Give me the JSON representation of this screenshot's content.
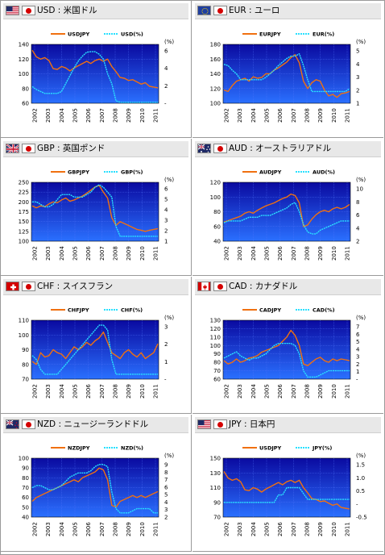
{
  "colors": {
    "orange": "#f07010",
    "cyan": "#29e0ff",
    "plot_top": "#0a0aa0",
    "plot_bottom": "#2a70ff"
  },
  "panels": [
    {
      "title": "USD : 米国ドル",
      "flag": "us-flag-icon",
      "chart_data": {
        "type": "line",
        "x_labels": [
          "2002",
          "2003",
          "2004",
          "2005",
          "2006",
          "2007",
          "2008",
          "2009",
          "2010",
          "2011"
        ],
        "left_axis": {
          "unit": "",
          "ticks": [
            "140",
            "120",
            "100",
            "80",
            "60"
          ],
          "range": [
            60,
            140
          ]
        },
        "right_axis": {
          "unit": "(%)",
          "ticks": [
            "6",
            "4",
            "2",
            "-"
          ],
          "range": [
            0,
            6
          ]
        },
        "series": [
          {
            "name": "USDJPY",
            "color": "orange",
            "axis": "left",
            "values": [
              132,
              123,
              120,
              122,
              118,
              107,
              106,
              110,
              108,
              104,
              108,
              111,
              114,
              117,
              114,
              118,
              120,
              117,
              120,
              110,
              103,
              95,
              94,
              91,
              92,
              89,
              86,
              88,
              83,
              82,
              81
            ]
          },
          {
            "name": "USD(%)",
            "color": "cyan",
            "axis": "right",
            "values": [
              1.7,
              1.4,
              1.2,
              1.0,
              1.0,
              1.0,
              1.0,
              1.2,
              2.0,
              2.8,
              3.6,
              4.3,
              4.8,
              5.2,
              5.25,
              5.25,
              5.0,
              4.5,
              3.0,
              2.0,
              0.25,
              0.1,
              0.1,
              0.1,
              0.1,
              0.1,
              0.1,
              0.1,
              0.1,
              0.1,
              0.1
            ]
          }
        ]
      }
    },
    {
      "title": "EUR : ユーロ",
      "flag": "eu-flag-icon",
      "chart_data": {
        "type": "line",
        "x_labels": [
          "2002",
          "2003",
          "2004",
          "2005",
          "2006",
          "2007",
          "2008",
          "2009",
          "2010",
          "2011"
        ],
        "left_axis": {
          "unit": "",
          "ticks": [
            "180",
            "160",
            "140",
            "120",
            "100"
          ],
          "range": [
            100,
            180
          ]
        },
        "right_axis": {
          "unit": "(%)",
          "ticks": [
            "5",
            "4",
            "3",
            "2",
            "1"
          ],
          "range": [
            0,
            5
          ]
        },
        "series": [
          {
            "name": "EURJPY",
            "color": "orange",
            "axis": "left",
            "values": [
              118,
              116,
              124,
              130,
              132,
              134,
              130,
              136,
              134,
              135,
              140,
              140,
              145,
              148,
              152,
              156,
              162,
              166,
              155,
              130,
              120,
              128,
              132,
              130,
              118,
              110,
              112,
              108,
              113,
              114,
              116
            ]
          },
          {
            "name": "EUR(%)",
            "color": "cyan",
            "axis": "right",
            "values": [
              3.3,
              3.2,
              2.8,
              2.5,
              2.0,
              2.0,
              2.0,
              2.0,
              2.0,
              2.0,
              2.2,
              2.5,
              2.8,
              3.2,
              3.5,
              3.8,
              4.0,
              4.0,
              4.2,
              3.2,
              2.0,
              1.0,
              1.0,
              1.0,
              1.0,
              1.0,
              1.0,
              1.0,
              1.0,
              1.0,
              1.25
            ]
          }
        ]
      }
    },
    {
      "title": "GBP : 英国ポンド",
      "flag": "uk-flag-icon",
      "chart_data": {
        "type": "line",
        "x_labels": [
          "2002",
          "2003",
          "2004",
          "2005",
          "2006",
          "2007",
          "2008",
          "2009",
          "2010",
          "2011"
        ],
        "left_axis": {
          "unit": "",
          "ticks": [
            "250",
            "225",
            "200",
            "175",
            "150",
            "125",
            "100"
          ],
          "range": [
            100,
            250
          ]
        },
        "right_axis": {
          "unit": "(%)",
          "ticks": [
            "6",
            "5",
            "4",
            "3",
            "2",
            "1"
          ],
          "range": [
            0,
            6
          ]
        },
        "series": [
          {
            "name": "GBPJPY",
            "color": "orange",
            "axis": "left",
            "values": [
              190,
              185,
              190,
              188,
              195,
              200,
              198,
              205,
              210,
              202,
              205,
              210,
              215,
              222,
              230,
              238,
              242,
              225,
              210,
              160,
              140,
              150,
              145,
              140,
              135,
              130,
              128,
              125,
              128,
              130,
              132
            ]
          },
          {
            "name": "GBP(%)",
            "color": "cyan",
            "axis": "right",
            "values": [
              4.0,
              4.0,
              3.75,
              3.5,
              3.5,
              3.75,
              4.25,
              4.75,
              4.75,
              4.75,
              4.5,
              4.5,
              4.5,
              4.75,
              5.0,
              5.5,
              5.75,
              5.5,
              5.0,
              4.5,
              1.5,
              0.5,
              0.5,
              0.5,
              0.5,
              0.5,
              0.5,
              0.5,
              0.5,
              0.5,
              0.5
            ]
          }
        ]
      }
    },
    {
      "title": "AUD : オーストラリアドル",
      "flag": "au-flag-icon",
      "chart_data": {
        "type": "line",
        "x_labels": [
          "2002",
          "2003",
          "2004",
          "2005",
          "2006",
          "2007",
          "2008",
          "2009",
          "2010",
          "2011"
        ],
        "left_axis": {
          "unit": "",
          "ticks": [
            "120",
            "100",
            "80",
            "60",
            "40"
          ],
          "range": [
            40,
            120
          ]
        },
        "right_axis": {
          "unit": "(%)",
          "ticks": [
            "10",
            "8",
            "6",
            "4",
            "2"
          ],
          "range": [
            2,
            10
          ]
        },
        "series": [
          {
            "name": "AUDJPY",
            "color": "orange",
            "axis": "left",
            "values": [
              66,
              68,
              70,
              72,
              74,
              78,
              80,
              78,
              82,
              85,
              88,
              90,
              92,
              95,
              98,
              100,
              104,
              102,
              92,
              60,
              62,
              70,
              76,
              80,
              82,
              80,
              84,
              86,
              84,
              86,
              90
            ]
          },
          {
            "name": "AUD(%)",
            "color": "cyan",
            "axis": "right",
            "values": [
              4.5,
              4.75,
              4.75,
              4.75,
              4.75,
              5.0,
              5.25,
              5.25,
              5.25,
              5.5,
              5.5,
              5.5,
              5.75,
              6.0,
              6.25,
              6.5,
              7.0,
              7.25,
              6.0,
              4.25,
              3.25,
              3.0,
              3.0,
              3.5,
              3.75,
              4.0,
              4.25,
              4.5,
              4.75,
              4.75,
              4.75
            ]
          }
        ]
      }
    },
    {
      "title": "CHF : スイスフラン",
      "flag": "ch-flag-icon",
      "chart_data": {
        "type": "line",
        "x_labels": [
          "2002",
          "2003",
          "2004",
          "2005",
          "2006",
          "2007",
          "2008",
          "2009",
          "2010",
          "2011"
        ],
        "left_axis": {
          "unit": "",
          "ticks": [
            "110",
            "100",
            "90",
            "80",
            "70"
          ],
          "range": [
            70,
            110
          ]
        },
        "right_axis": {
          "unit": "(%)",
          "ticks": [
            "3",
            "2",
            "1",
            "-"
          ],
          "range": [
            0,
            3
          ]
        },
        "series": [
          {
            "name": "CHFJPY",
            "color": "orange",
            "axis": "left",
            "values": [
              82,
              80,
              88,
              85,
              86,
              90,
              88,
              87,
              84,
              88,
              92,
              90,
              92,
              95,
              93,
              96,
              98,
              102,
              95,
              88,
              86,
              84,
              88,
              90,
              87,
              85,
              88,
              84,
              86,
              88,
              94
            ]
          },
          {
            "name": "CHF(%)",
            "color": "cyan",
            "axis": "right",
            "values": [
              1.2,
              1.0,
              0.5,
              0.25,
              0.25,
              0.25,
              0.25,
              0.5,
              0.75,
              1.0,
              1.25,
              1.5,
              1.75,
              2.0,
              2.25,
              2.5,
              2.75,
              2.75,
              2.5,
              1.0,
              0.25,
              0.25,
              0.25,
              0.25,
              0.25,
              0.25,
              0.25,
              0.25,
              0.25,
              0.25,
              0.25
            ]
          }
        ]
      }
    },
    {
      "title": "CAD : カナダドル",
      "flag": "ca-flag-icon",
      "chart_data": {
        "type": "line",
        "x_labels": [
          "2002",
          "2003",
          "2004",
          "2005",
          "2006",
          "2007",
          "2008",
          "2009",
          "2010",
          "2011"
        ],
        "left_axis": {
          "unit": "",
          "ticks": [
            "130",
            "120",
            "110",
            "100",
            "90",
            "80",
            "70",
            "60"
          ],
          "range": [
            60,
            130
          ]
        },
        "right_axis": {
          "unit": "(%)",
          "ticks": [
            "7",
            "6",
            "5",
            "4",
            "3",
            "2",
            "1",
            "-"
          ],
          "range": [
            0,
            7
          ]
        },
        "series": [
          {
            "name": "CADJPY",
            "color": "orange",
            "axis": "left",
            "values": [
              82,
              78,
              80,
              84,
              80,
              82,
              85,
              86,
              88,
              92,
              94,
              96,
              98,
              100,
              105,
              110,
              118,
              112,
              100,
              78,
              76,
              80,
              84,
              86,
              82,
              80,
              84,
              82,
              84,
              83,
              82
            ]
          },
          {
            "name": "CAD(%)",
            "color": "cyan",
            "axis": "right",
            "values": [
              2.5,
              2.75,
              3.0,
              3.25,
              2.75,
              2.5,
              2.25,
              2.5,
              2.5,
              2.75,
              3.0,
              3.5,
              4.0,
              4.25,
              4.25,
              4.25,
              4.25,
              4.0,
              3.0,
              1.0,
              0.25,
              0.25,
              0.25,
              0.5,
              0.75,
              1.0,
              1.0,
              1.0,
              1.0,
              1.0,
              1.0
            ]
          }
        ]
      }
    },
    {
      "title": "NZD : ニュージーランドドル",
      "flag": "nz-flag-icon",
      "chart_data": {
        "type": "line",
        "x_labels": [
          "2002",
          "2003",
          "2004",
          "2005",
          "2006",
          "2007",
          "2008",
          "2009",
          "2010",
          "2011"
        ],
        "left_axis": {
          "unit": "",
          "ticks": [
            "100",
            "90",
            "80",
            "70",
            "60",
            "50",
            "40"
          ],
          "range": [
            40,
            100
          ]
        },
        "right_axis": {
          "unit": "(%)",
          "ticks": [
            "9",
            "8",
            "7",
            "6",
            "5",
            "4",
            "3",
            "2"
          ],
          "range": [
            2,
            9
          ]
        },
        "series": [
          {
            "name": "NZDJPY",
            "color": "orange",
            "axis": "left",
            "values": [
              56,
              60,
              62,
              64,
              66,
              68,
              70,
              72,
              74,
              76,
              78,
              76,
              80,
              82,
              84,
              86,
              90,
              88,
              78,
              52,
              50,
              56,
              58,
              60,
              62,
              60,
              62,
              60,
              62,
              64,
              66
            ]
          },
          {
            "name": "NZD(%)",
            "color": "cyan",
            "axis": "right",
            "values": [
              5.5,
              5.75,
              5.75,
              5.5,
              5.25,
              5.25,
              5.5,
              5.75,
              6.25,
              6.75,
              7.0,
              7.25,
              7.25,
              7.25,
              7.5,
              8.0,
              8.25,
              8.25,
              8.0,
              5.0,
              3.0,
              2.5,
              2.5,
              2.5,
              2.75,
              3.0,
              3.0,
              3.0,
              3.0,
              2.5,
              2.5
            ]
          }
        ]
      }
    },
    {
      "title": "JPY : 日本円",
      "flag": "us-flag-icon",
      "chart_data": {
        "type": "line",
        "x_labels": [
          "2002",
          "2003",
          "2004",
          "2005",
          "2006",
          "2007",
          "2008",
          "2009",
          "2010",
          "2011"
        ],
        "left_axis": {
          "unit": "",
          "ticks": [
            "150",
            "130",
            "110",
            "90",
            "70"
          ],
          "range": [
            70,
            150
          ]
        },
        "right_axis": {
          "unit": "(%)",
          "ticks": [
            "1.5",
            "1.0",
            "0.5",
            "-",
            "-0.5"
          ],
          "range": [
            -0.5,
            1.5
          ]
        },
        "series": [
          {
            "name": "USDJPY",
            "color": "orange",
            "axis": "left",
            "values": [
              132,
              123,
              120,
              122,
              118,
              107,
              106,
              110,
              108,
              104,
              108,
              111,
              114,
              117,
              114,
              118,
              120,
              117,
              120,
              110,
              103,
              95,
              94,
              91,
              92,
              89,
              86,
              88,
              83,
              82,
              81
            ]
          },
          {
            "name": "JPY(%)",
            "color": "cyan",
            "axis": "right",
            "values": [
              0.0,
              0.0,
              0.0,
              0.0,
              0.0,
              0.0,
              0.0,
              0.0,
              0.0,
              0.0,
              0.0,
              0.0,
              0.0,
              0.25,
              0.25,
              0.5,
              0.5,
              0.5,
              0.5,
              0.3,
              0.1,
              0.1,
              0.1,
              0.1,
              0.1,
              0.1,
              0.1,
              0.1,
              0.1,
              0.1,
              0.1
            ]
          }
        ]
      }
    }
  ]
}
